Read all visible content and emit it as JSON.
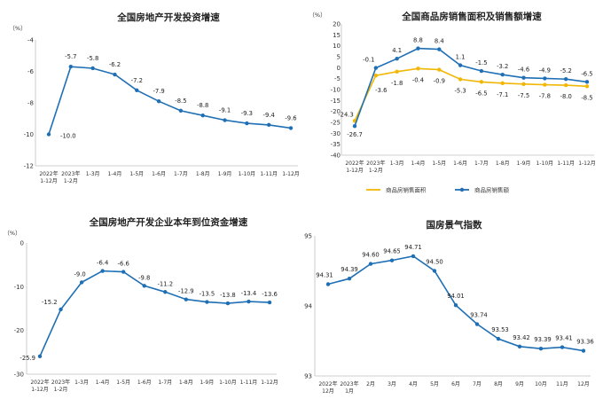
{
  "chart_data": [
    {
      "type": "line",
      "title": "全国房地产开发投资增速",
      "ylabel": "（%）",
      "ylim": [
        -12,
        -4
      ],
      "yticks": [
        -4,
        -6,
        -8,
        -10,
        -12
      ],
      "grid": false,
      "colors": {
        "line": "#1f6fb5"
      },
      "categories": [
        [
          "2022年",
          "1-12月"
        ],
        [
          "2023年",
          "1-2月"
        ],
        [
          "1-3月"
        ],
        [
          "1-4月"
        ],
        [
          "1-5月"
        ],
        [
          "1-6月"
        ],
        [
          "1-7月"
        ],
        [
          "1-8月"
        ],
        [
          "1-9月"
        ],
        [
          "1-10月"
        ],
        [
          "1-11月"
        ],
        [
          "1-12月"
        ]
      ],
      "series": [
        {
          "values": [
            -10.0,
            -5.7,
            -5.8,
            -6.2,
            -7.2,
            -7.9,
            -8.5,
            -8.8,
            -9.1,
            -9.3,
            -9.4,
            -9.6
          ],
          "labels": [
            "-10.0",
            "-5.7",
            "-5.8",
            "-6.2",
            "-7.2",
            "-7.9",
            "-8.5",
            "-8.8",
            "-9.1",
            "-9.3",
            "-9.4",
            "-9.6"
          ]
        }
      ]
    },
    {
      "type": "line",
      "title": "全国商品房销售面积及销售额增速",
      "ylabel": "（%）",
      "ylim": [
        -40,
        20
      ],
      "yticks": [
        20,
        15,
        10,
        5,
        0,
        -5,
        -10,
        -15,
        -20,
        -25,
        -30,
        -35,
        -40
      ],
      "grid": false,
      "legend": "bottom",
      "categories": [
        [
          "2022年",
          "1-12月"
        ],
        [
          "2023年",
          "1-2月"
        ],
        [
          "1-3月"
        ],
        [
          "1-4月"
        ],
        [
          "1-5月"
        ],
        [
          "1-6月"
        ],
        [
          "1-7月"
        ],
        [
          "1-8月"
        ],
        [
          "1-9月"
        ],
        [
          "1-10月"
        ],
        [
          "1-11月"
        ],
        [
          "1-12月"
        ]
      ],
      "series": [
        {
          "name": "商品房销售面积",
          "color": "#f2b705",
          "values": [
            -24.3,
            -3.6,
            -1.8,
            -0.4,
            -0.9,
            -5.3,
            -6.5,
            -7.1,
            -7.5,
            -7.8,
            -8.0,
            -8.5
          ],
          "labels": [
            "-24.3",
            "-3.6",
            "-1.8",
            "-0.4",
            "-0.9",
            "-5.3",
            "-6.5",
            "-7.1",
            "-7.5",
            "-7.8",
            "-8.0",
            "-8.5"
          ]
        },
        {
          "name": "商品房销售额",
          "color": "#1f6fb5",
          "values": [
            -26.7,
            -0.1,
            4.1,
            8.8,
            8.4,
            1.1,
            -1.5,
            -3.2,
            -4.6,
            -4.9,
            -5.2,
            -6.5
          ],
          "labels": [
            "-26.7",
            "-0.1",
            "4.1",
            "8.8",
            "8.4",
            "1.1",
            "-1.5",
            "-3.2",
            "-4.6",
            "-4.9",
            "-5.2",
            "-6.5"
          ]
        }
      ]
    },
    {
      "type": "line",
      "title": "全国房地产开发企业本年到位资金增速",
      "ylabel": "（%）",
      "ylim": [
        -30,
        0
      ],
      "yticks": [
        0,
        -10,
        -20,
        -30
      ],
      "grid": false,
      "colors": {
        "line": "#1f6fb5"
      },
      "categories": [
        [
          "2022年",
          "1-12月"
        ],
        [
          "2023年",
          "1-2月"
        ],
        [
          "1-3月"
        ],
        [
          "1-4月"
        ],
        [
          "1-5月"
        ],
        [
          "1-6月"
        ],
        [
          "1-7月"
        ],
        [
          "1-8月"
        ],
        [
          "1-9月"
        ],
        [
          "1-10月"
        ],
        [
          "1-11月"
        ],
        [
          "1-12月"
        ]
      ],
      "series": [
        {
          "values": [
            -25.9,
            -15.2,
            -9.0,
            -6.4,
            -6.6,
            -9.8,
            -11.2,
            -12.9,
            -13.5,
            -13.8,
            -13.4,
            -13.6
          ],
          "labels": [
            "-25.9",
            "-15.2",
            "-9.0",
            "-6.4",
            "-6.6",
            "-9.8",
            "-11.2",
            "-12.9",
            "-13.5",
            "-13.8",
            "-13.4",
            "-13.6"
          ]
        }
      ]
    },
    {
      "type": "line",
      "title": "国房景气指数",
      "ylabel": "",
      "ylim": [
        93,
        95
      ],
      "yticks": [
        95,
        94,
        93
      ],
      "grid": false,
      "colors": {
        "line": "#1f6fb5"
      },
      "categories": [
        [
          "2022年",
          "12月"
        ],
        [
          "2023年",
          "1月"
        ],
        [
          "2月"
        ],
        [
          "3月"
        ],
        [
          "4月"
        ],
        [
          "5月"
        ],
        [
          "6月"
        ],
        [
          "7月"
        ],
        [
          "8月"
        ],
        [
          "9月"
        ],
        [
          "10月"
        ],
        [
          "11月"
        ],
        [
          "12月"
        ]
      ],
      "series": [
        {
          "values": [
            94.31,
            94.39,
            94.6,
            94.65,
            94.71,
            94.5,
            94.01,
            93.74,
            93.53,
            93.42,
            93.39,
            93.41,
            93.36
          ],
          "labels": [
            "94.31",
            "94.39",
            "94.60",
            "94.65",
            "94.71",
            "94.50",
            "94.01",
            "93.74",
            "93.53",
            "93.42",
            "93.39",
            "93.41",
            "93.36"
          ]
        }
      ]
    }
  ]
}
